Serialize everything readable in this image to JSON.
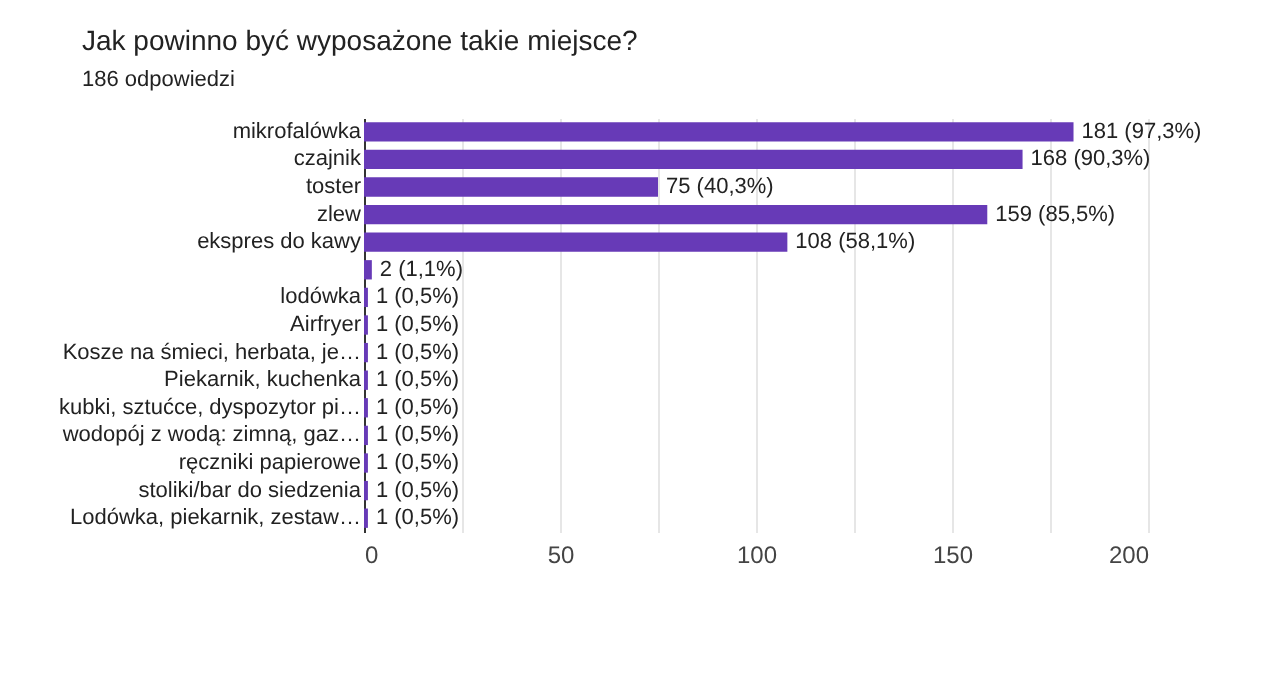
{
  "chart_data": {
    "type": "bar",
    "orientation": "horizontal",
    "title": "Jak powinno być wyposażone takie miejsce?",
    "subtitle": "186 odpowiedzi",
    "categories": [
      "mikrofalówka",
      "czajnik",
      "toster",
      "zlew",
      "ekspres do kawy",
      null,
      "lodówka",
      "Airfryer",
      "Kosze na śmieci, herbata, je…",
      "Piekarnik, kuchenka",
      "kubki, sztućce, dyspozytor pi…",
      "wodopój z wodą: zimną, gaz…",
      "ręczniki papierowe",
      "stoliki/bar do siedzenia",
      "Lodówka, piekarnik, zestaw…"
    ],
    "values": [
      181,
      168,
      75,
      159,
      108,
      2,
      1,
      1,
      1,
      1,
      1,
      1,
      1,
      1,
      1
    ],
    "value_labels": [
      "181 (97,3%)",
      "168 (90,3%)",
      "75 (40,3%)",
      "159 (85,5%)",
      "108 (58,1%)",
      "2 (1,1%)",
      "1 (0,5%)",
      "1 (0,5%)",
      "1 (0,5%)",
      "1 (0,5%)",
      "1 (0,5%)",
      "1 (0,5%)",
      "1 (0,5%)",
      "1 (0,5%)",
      "1 (0,5%)"
    ],
    "color": "#673ab7",
    "xlim": [
      0,
      200
    ],
    "xticks": [
      0,
      {
        "value": 25,
        "label": null
      },
      50,
      {
        "value": 75,
        "label": null
      },
      100,
      {
        "value": 125,
        "label": null
      },
      150,
      {
        "value": 175,
        "label": null
      },
      200
    ],
    "grid": true
  }
}
